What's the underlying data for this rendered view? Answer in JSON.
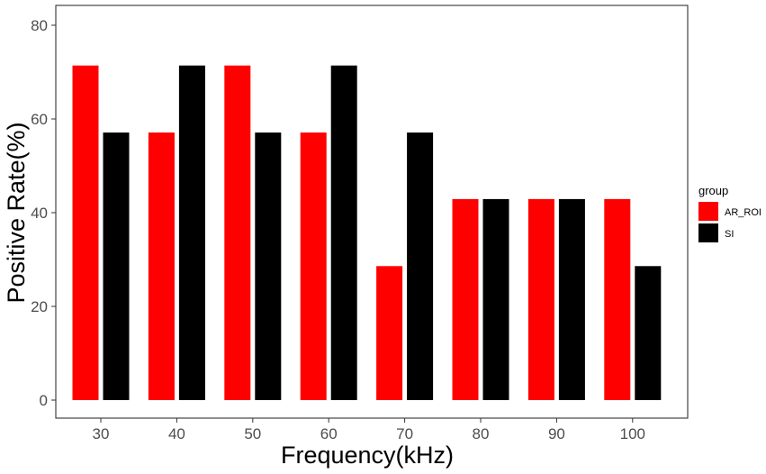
{
  "chart_data": {
    "type": "bar",
    "xlabel": "Frequency(kHz)",
    "ylabel": "Positive Rate(%)",
    "categories": [
      "30",
      "40",
      "50",
      "60",
      "70",
      "80",
      "90",
      "100"
    ],
    "series": [
      {
        "name": "AR_ROI",
        "color": "#ff0000",
        "values": [
          71.4,
          57.1,
          71.4,
          57.1,
          28.6,
          42.9,
          42.9,
          42.9
        ]
      },
      {
        "name": "SI",
        "color": "#000000",
        "values": [
          57.1,
          71.4,
          57.1,
          71.4,
          57.1,
          42.9,
          42.9,
          28.6
        ]
      }
    ],
    "ylim": [
      -3.6,
      84
    ],
    "yticks": [
      0,
      20,
      40,
      60,
      80
    ],
    "grid": false,
    "legend": {
      "title": "group",
      "position": "right"
    }
  }
}
